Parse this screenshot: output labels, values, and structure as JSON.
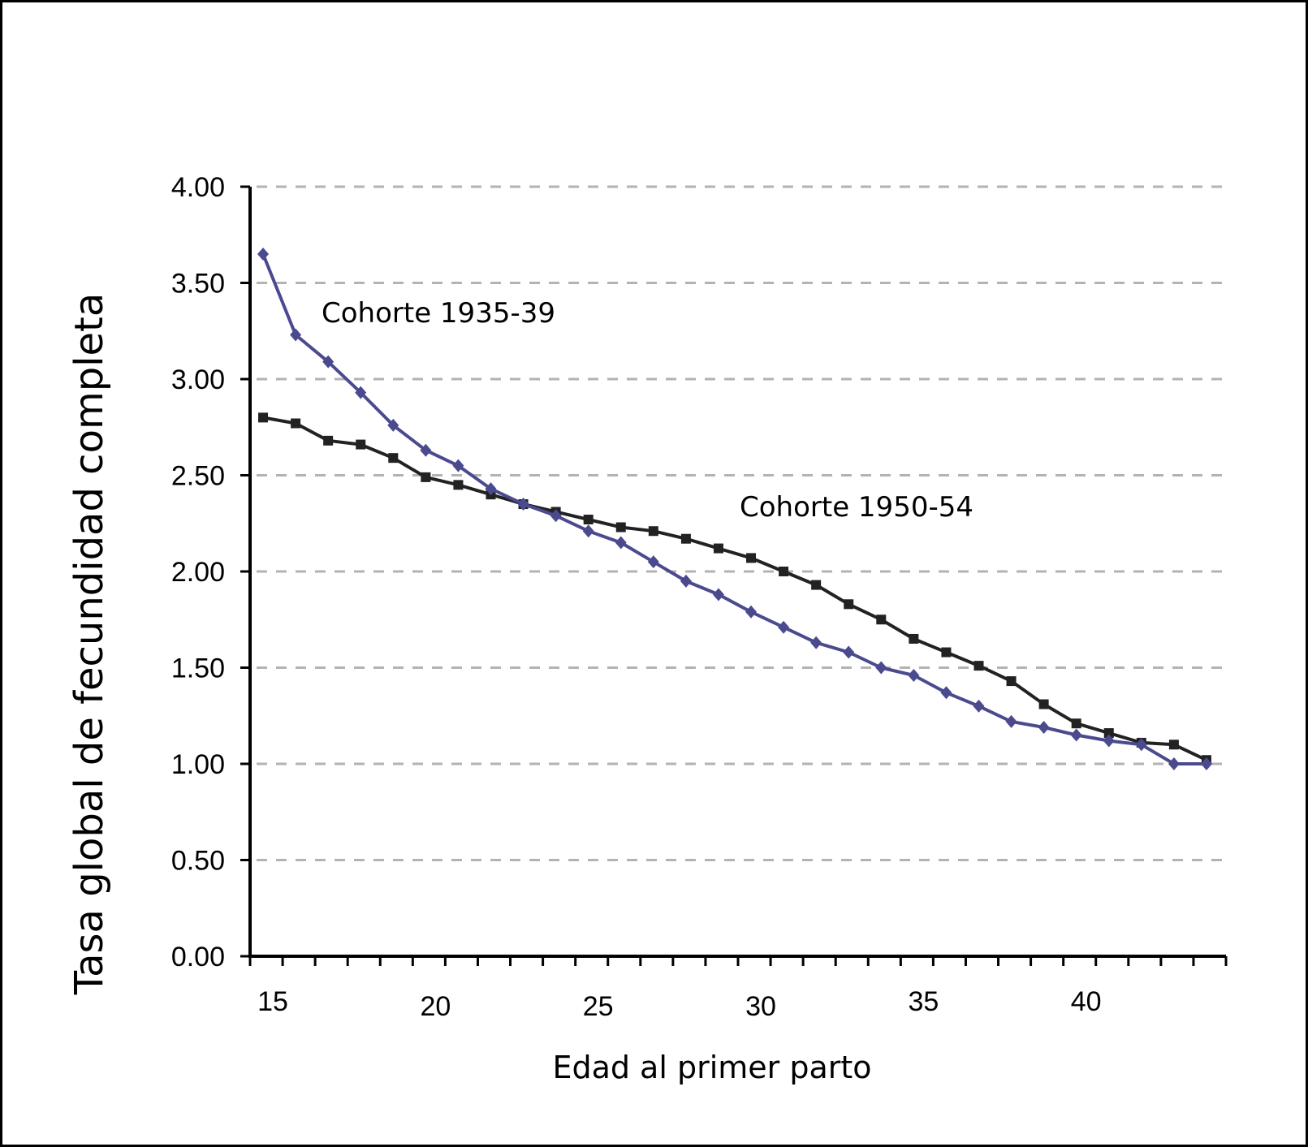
{
  "chart_data": {
    "type": "line",
    "title": "",
    "xlabel": "Edad al primer parto",
    "ylabel": "Tasa global de fecundidad completa",
    "xlim": [
      14.6,
      44.6
    ],
    "ylim": [
      0,
      4
    ],
    "x_ticks": [
      "15",
      "20",
      "25",
      "30",
      "35",
      "40"
    ],
    "y_ticks": [
      "0.00",
      "0.50",
      "1.00",
      "1.50",
      "2.00",
      "2.50",
      "3.00",
      "3.50",
      "4.00"
    ],
    "grid": "horizontal dashed",
    "legend": "inline labels",
    "x": [
      15,
      16,
      17,
      18,
      19,
      20,
      21,
      22,
      23,
      24,
      25,
      26,
      27,
      28,
      29,
      30,
      31,
      32,
      33,
      34,
      35,
      36,
      37,
      38,
      39,
      40,
      41,
      42,
      43,
      44
    ],
    "series": [
      {
        "name": "Cohorte 1935-39",
        "color": "#4b4a8f",
        "marker": "diamond",
        "values": [
          3.65,
          3.23,
          3.09,
          2.93,
          2.76,
          2.63,
          2.55,
          2.43,
          2.35,
          2.29,
          2.21,
          2.15,
          2.05,
          1.95,
          1.88,
          1.79,
          1.71,
          1.63,
          1.58,
          1.5,
          1.46,
          1.37,
          1.3,
          1.22,
          1.19,
          1.15,
          1.12,
          1.1,
          1.0,
          1.0
        ]
      },
      {
        "name": "Cohorte 1950-54",
        "color": "#222222",
        "marker": "square",
        "values": [
          2.8,
          2.77,
          2.68,
          2.66,
          2.59,
          2.49,
          2.45,
          2.4,
          2.35,
          2.31,
          2.27,
          2.23,
          2.21,
          2.17,
          2.12,
          2.07,
          2.0,
          1.93,
          1.83,
          1.75,
          1.65,
          1.58,
          1.51,
          1.43,
          1.31,
          1.21,
          1.16,
          1.11,
          1.1,
          1.02
        ]
      }
    ]
  }
}
